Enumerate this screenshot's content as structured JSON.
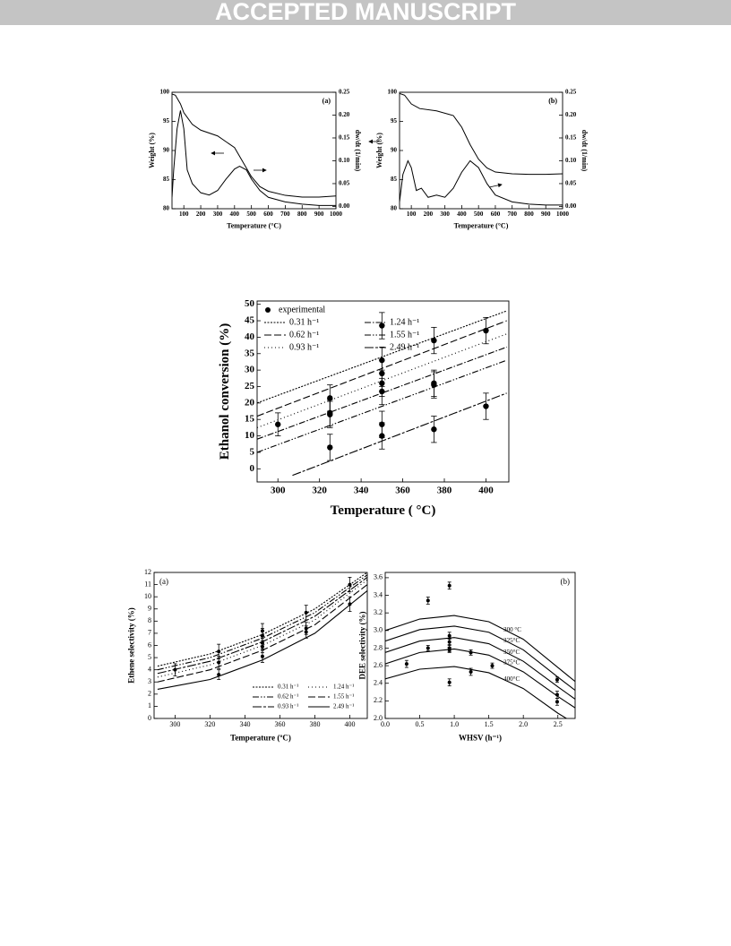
{
  "header": {
    "banner": "ACCEPTED MANUSCRIPT"
  },
  "chart_data": [
    {
      "type": "line",
      "panel_label": "(a)",
      "x_label": "Temperature (°C)",
      "y_label": "Weight (%)",
      "y2_label": "dw/dt (1/min)",
      "xlim": [
        30,
        1000
      ],
      "xticks": [
        100,
        200,
        300,
        400,
        500,
        600,
        700,
        800,
        900,
        1000
      ],
      "ylim": [
        80,
        100
      ],
      "yticks": [
        80,
        85,
        90,
        95,
        100
      ],
      "y2lim": [
        -0.005,
        0.25
      ],
      "y2ticks": [
        {
          "value": 0,
          "label": "0.00"
        },
        0.05,
        {
          "value": 0.1,
          "label": "0.10"
        },
        0.15,
        {
          "value": 0.2,
          "label": "0.20"
        },
        0.25
      ],
      "series": [
        {
          "color": "#000000",
          "style": "solid",
          "x": [
            30,
            50,
            80,
            100,
            150,
            200,
            300,
            400,
            450,
            500,
            550,
            600,
            700,
            800,
            900,
            1000
          ],
          "values": [
            99.7,
            99.5,
            98,
            96.5,
            94.5,
            93.5,
            92.5,
            90.5,
            88,
            85.5,
            83.8,
            83,
            82.3,
            82,
            82,
            82.2
          ]
        },
        {
          "color": "#000000",
          "style": "solid",
          "axis": "y2",
          "x": [
            30,
            40,
            60,
            80,
            100,
            120,
            150,
            200,
            250,
            300,
            350,
            400,
            430,
            470,
            500,
            550,
            600,
            700,
            800,
            900,
            1000
          ],
          "values": [
            0.02,
            0.08,
            0.17,
            0.21,
            0.17,
            0.08,
            0.05,
            0.03,
            0.025,
            0.035,
            0.06,
            0.082,
            0.088,
            0.08,
            0.06,
            0.035,
            0.02,
            0.01,
            0.005,
            0.002,
            0.002
          ]
        }
      ]
    },
    {
      "type": "line",
      "panel_label": "(b)",
      "x_label": "Temperature (°C)",
      "y_label": "Weight (%)",
      "y2_label": "dw/dt (1/min)",
      "xlim": [
        30,
        1000
      ],
      "xticks": [
        100,
        200,
        300,
        400,
        500,
        600,
        700,
        800,
        900,
        1000
      ],
      "ylim": [
        80,
        100
      ],
      "yticks": [
        80,
        85,
        90,
        95,
        100
      ],
      "y2lim": [
        -0.005,
        0.25
      ],
      "y2ticks": [
        {
          "value": 0,
          "label": "0.00"
        },
        0.05,
        {
          "value": 0.1,
          "label": "0.10"
        },
        0.15,
        {
          "value": 0.2,
          "label": "0.20"
        },
        0.25
      ],
      "series": [
        {
          "color": "#000000",
          "style": "solid",
          "x": [
            30,
            60,
            100,
            150,
            250,
            350,
            400,
            450,
            500,
            550,
            600,
            700,
            800,
            900,
            1000
          ],
          "values": [
            99.8,
            99.5,
            98,
            97.2,
            96.8,
            96,
            94,
            91,
            88.5,
            87,
            86.3,
            86,
            85.9,
            85.9,
            86
          ]
        },
        {
          "color": "#000000",
          "style": "solid",
          "axis": "y2",
          "x": [
            30,
            50,
            80,
            100,
            130,
            160,
            200,
            250,
            300,
            350,
            400,
            450,
            500,
            550,
            600,
            700,
            800,
            900,
            1000
          ],
          "values": [
            0.01,
            0.07,
            0.1,
            0.085,
            0.035,
            0.04,
            0.02,
            0.025,
            0.02,
            0.04,
            0.075,
            0.1,
            0.085,
            0.05,
            0.025,
            0.01,
            0.005,
            0.003,
            0.003
          ]
        }
      ]
    },
    {
      "type": "line",
      "x_label": "Temperature ( °C)",
      "y_label": "Ethanol conversion (%)",
      "legend": "upper left",
      "xlim": [
        290,
        411
      ],
      "xticks": [
        300,
        320,
        340,
        360,
        380,
        400
      ],
      "ylim": [
        -4,
        51
      ],
      "yticks": [
        0,
        5,
        10,
        15,
        20,
        25,
        30,
        35,
        40,
        45,
        50
      ],
      "series": [
        {
          "name": "experimental",
          "color": "#000000",
          "marker": "circle",
          "x": [
            300,
            325,
            325,
            325,
            325,
            350,
            350,
            350,
            350,
            350,
            350,
            350,
            375,
            375,
            375,
            375,
            400,
            400
          ],
          "values": [
            13.5,
            21.5,
            17,
            16.5,
            6.5,
            43.5,
            33,
            29,
            26,
            23.5,
            13.5,
            10,
            39,
            26,
            25.5,
            12,
            42,
            19
          ],
          "errors": [
            3.5,
            4,
            4,
            4,
            4,
            4,
            4,
            4,
            4,
            4,
            4,
            4,
            4,
            4,
            4,
            4,
            4,
            4
          ]
        },
        {
          "name": "0.31 h⁻¹",
          "color": "#000000",
          "style": "dense-dotted",
          "x": [
            290,
            410
          ],
          "values": [
            20,
            48
          ]
        },
        {
          "name": "0.62 h⁻¹",
          "color": "#000000",
          "style": "dashed",
          "x": [
            290,
            410
          ],
          "values": [
            16,
            45
          ]
        },
        {
          "name": "0.93 h⁻¹",
          "color": "#000000",
          "style": "dotted",
          "x": [
            290,
            410
          ],
          "values": [
            12.5,
            41
          ]
        },
        {
          "name": "1.24 h⁻¹",
          "color": "#000000",
          "style": "dash-dot",
          "x": [
            290,
            410
          ],
          "values": [
            9,
            37
          ]
        },
        {
          "name": "1.55 h⁻¹",
          "color": "#000000",
          "style": "dash-dot-dot",
          "x": [
            290,
            410
          ],
          "values": [
            5,
            33
          ]
        },
        {
          "name": "2.49 h⁻¹",
          "color": "#000000",
          "style": "long-dash-dot",
          "x": [
            307,
            410
          ],
          "values": [
            -2,
            23
          ]
        }
      ]
    },
    {
      "type": "line",
      "panel_label": "(a)",
      "x_label": "Temperature (ºC)",
      "y_label": "Ethene selectivity (%)",
      "legend": "lower right",
      "xlim": [
        288,
        410
      ],
      "xticks": [
        300,
        320,
        340,
        360,
        380,
        400
      ],
      "ylim": [
        0,
        12
      ],
      "yticks": [
        0,
        1,
        2,
        3,
        4,
        5,
        6,
        7,
        8,
        9,
        10,
        11,
        12
      ],
      "series": [
        {
          "color": "#000000",
          "marker": "circle",
          "x": [
            300,
            325,
            325,
            325,
            350,
            350,
            350,
            350,
            350,
            375,
            375,
            375,
            400,
            400
          ],
          "values": [
            4,
            5.5,
            4.6,
            3.6,
            7.2,
            6.8,
            6.2,
            5.9,
            5.1,
            8.7,
            7.4,
            7.1,
            11,
            9.4
          ],
          "errors": [
            0.5,
            0.6,
            0.5,
            0.4,
            0.6,
            0.6,
            0.5,
            0.5,
            0.5,
            0.6,
            0.5,
            0.5,
            0.6,
            0.6
          ]
        },
        {
          "name": "0.31 h⁻¹",
          "color": "#000000",
          "style": "dense-dotted",
          "x": [
            290,
            320,
            350,
            380,
            410
          ],
          "values": [
            4.3,
            5.3,
            6.9,
            9,
            12
          ]
        },
        {
          "name": "0.62 h⁻¹",
          "color": "#000000",
          "style": "dash-dot-dot",
          "x": [
            290,
            320,
            350,
            380,
            410
          ],
          "values": [
            4,
            5,
            6.6,
            8.7,
            11.8
          ]
        },
        {
          "name": "0.93 h⁻¹",
          "color": "#000000",
          "style": "long-dash-dot",
          "x": [
            290,
            320,
            350,
            380,
            410
          ],
          "values": [
            3.7,
            4.7,
            6.3,
            8.4,
            11.6
          ]
        },
        {
          "name": "1.24 h⁻¹",
          "color": "#000000",
          "style": "dotted",
          "x": [
            290,
            320,
            350,
            380,
            410
          ],
          "values": [
            3.4,
            4.4,
            6,
            8.1,
            11.4
          ]
        },
        {
          "name": "1.55 h⁻¹",
          "color": "#000000",
          "style": "dashed",
          "x": [
            290,
            320,
            350,
            380,
            410
          ],
          "values": [
            3,
            4,
            5.6,
            7.7,
            11
          ]
        },
        {
          "name": "2.49 h⁻¹",
          "color": "#000000",
          "style": "solid",
          "x": [
            290,
            320,
            350,
            380,
            410
          ],
          "values": [
            2.4,
            3.2,
            4.8,
            7,
            10.5
          ]
        }
      ]
    },
    {
      "type": "line",
      "panel_label": "(b)",
      "x_label": "WHSV (h⁻¹)",
      "y_label": "DEE selectivity (%)",
      "curve_labels": true,
      "xlim": [
        0,
        2.75
      ],
      "xticks": [
        {
          "value": 0,
          "label": "0.0"
        },
        0.5,
        {
          "value": 1,
          "label": "1.0"
        },
        1.5,
        {
          "value": 2,
          "label": "2.0"
        },
        2.5
      ],
      "ylim": [
        2,
        3.66
      ],
      "yticks": [
        {
          "value": 2,
          "label": "2.0"
        },
        2.2,
        2.4,
        2.6,
        2.8,
        {
          "value": 3,
          "label": "3.0"
        },
        3.2,
        3.4,
        3.6
      ],
      "series": [
        {
          "color": "#000000",
          "marker": "circle",
          "x": [
            0.31,
            0.62,
            0.62,
            0.93,
            0.93,
            0.93,
            0.93,
            0.93,
            0.93,
            1.24,
            1.24,
            1.55,
            2.49,
            2.49,
            2.49
          ],
          "values": [
            2.62,
            3.34,
            2.8,
            3.51,
            2.94,
            2.87,
            2.8,
            2.78,
            2.41,
            2.75,
            2.53,
            2.6,
            2.44,
            2.27,
            2.19
          ],
          "errors": [
            0.04,
            0.04,
            0.03,
            0.04,
            0.04,
            0.04,
            0.04,
            0.03,
            0.04,
            0.03,
            0.04,
            0.03,
            0.03,
            0.04,
            0.04
          ]
        },
        {
          "name": "300 °C",
          "color": "#000000",
          "style": "solid",
          "x": [
            0,
            0.5,
            1,
            1.5,
            2,
            2.5,
            2.75
          ],
          "values": [
            3,
            3.13,
            3.17,
            3.1,
            2.9,
            2.58,
            2.42
          ]
        },
        {
          "name": "325°C",
          "color": "#000000",
          "style": "solid",
          "x": [
            0,
            0.5,
            1,
            1.5,
            2,
            2.5,
            2.75
          ],
          "values": [
            2.88,
            3.01,
            3.05,
            2.98,
            2.78,
            2.47,
            2.32
          ]
        },
        {
          "name": "350°C",
          "color": "#000000",
          "style": "solid",
          "x": [
            0,
            0.5,
            1,
            1.5,
            2,
            2.5,
            2.75
          ],
          "values": [
            2.75,
            2.88,
            2.92,
            2.85,
            2.65,
            2.36,
            2.22
          ]
        },
        {
          "name": "375°C",
          "color": "#000000",
          "style": "solid",
          "x": [
            0,
            0.5,
            1,
            1.5,
            2,
            2.5,
            2.75
          ],
          "values": [
            2.62,
            2.75,
            2.79,
            2.72,
            2.53,
            2.25,
            2.12
          ]
        },
        {
          "name": "400°C",
          "color": "#000000",
          "style": "solid",
          "x": [
            0,
            0.5,
            1,
            1.5,
            2,
            2.5,
            2.75
          ],
          "values": [
            2.45,
            2.56,
            2.59,
            2.52,
            2.34,
            2.06,
            1.94
          ]
        }
      ]
    }
  ]
}
